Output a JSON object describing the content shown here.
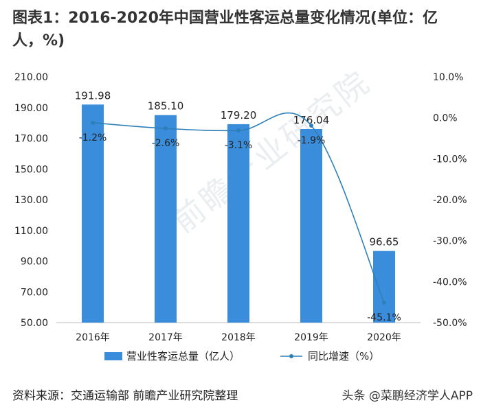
{
  "title": "图表1：2016-2020年中国营业性客运总量变化情况(单位：亿人，%)",
  "source": "资料来源：交通运输部 前瞻产业研究院整理",
  "watermark": "头条 @菜鹏经济学人APP",
  "background_watermark": "前瞻产业研究院",
  "colors": {
    "bar": "#3a8ddb",
    "line": "#2e7fb8",
    "text": "#222222",
    "axis": "#bbbbbb"
  },
  "chart_data": {
    "type": "bar",
    "categories": [
      "2016年",
      "2017年",
      "2018年",
      "2019年",
      "2020年"
    ],
    "series": [
      {
        "name": "营业性客运总量（亿人）",
        "type": "bar",
        "axis": "left",
        "values": [
          191.98,
          185.1,
          179.2,
          176.04,
          96.65
        ],
        "labels": [
          "191.98",
          "185.10",
          "179.20",
          "176.04",
          "96.65"
        ]
      },
      {
        "name": "同比增速（%）",
        "type": "line",
        "axis": "right",
        "values": [
          -1.2,
          -2.6,
          -3.1,
          -1.9,
          -45.1
        ],
        "labels": [
          "-1.2%",
          "-2.6%",
          "-3.1%",
          "-1.9%",
          "-45.1%"
        ]
      }
    ],
    "y_left": {
      "ylim": [
        50,
        210
      ],
      "ticks": [
        50,
        70,
        90,
        110,
        130,
        150,
        170,
        190,
        210
      ],
      "tick_labels": [
        "50.00",
        "70.00",
        "90.00",
        "110.00",
        "130.00",
        "150.00",
        "170.00",
        "190.00",
        "210.00"
      ]
    },
    "y_right": {
      "ylim": [
        -50,
        10
      ],
      "ticks": [
        -50,
        -40,
        -30,
        -20,
        -10,
        0,
        10
      ],
      "tick_labels": [
        "-50.0%",
        "-40.0%",
        "-30.0%",
        "-20.0%",
        "-10.0%",
        "0.0%",
        "10.0%"
      ]
    },
    "grid": false,
    "legend": "bottom"
  }
}
